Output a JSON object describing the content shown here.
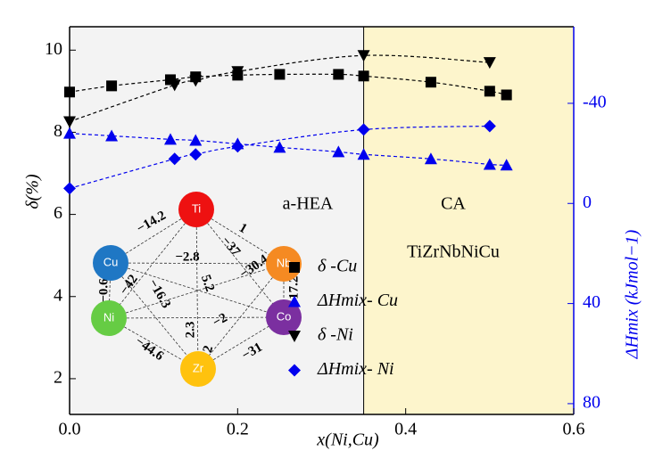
{
  "chart_data": {
    "type": "scatter",
    "x_label": "x(Ni,Cu)",
    "y_label": "δ(%)",
    "y2_label": "ΔHmix (kJmol−1)",
    "xlim": [
      0,
      0.6
    ],
    "xticks": [
      {
        "value": 0,
        "label": "0.0"
      },
      0.2,
      0.4,
      0.6
    ],
    "ylim": [
      1.13,
      10.57
    ],
    "yticks": [
      2,
      4,
      6,
      8,
      10
    ],
    "y2lim": [
      84.3,
      -70.6
    ],
    "y2ticks": [
      -40,
      0,
      40,
      80
    ],
    "regions": [
      {
        "xlim": [
          0,
          0.35
        ],
        "label": "a-HEA",
        "color": "#f3f3f3"
      },
      {
        "xlim": [
          0.35,
          0.6
        ],
        "label": "CA",
        "color": "#fdf5cc"
      }
    ],
    "legend_title": "TiZrNbNiCu",
    "series": [
      {
        "name": "δ -Cu",
        "color": "#000000",
        "marker": "square",
        "x": [
          0,
          0.05,
          0.12,
          0.15,
          0.2,
          0.25,
          0.32,
          0.35,
          0.43,
          0.5,
          0.52
        ],
        "values": [
          8.98,
          9.13,
          9.28,
          9.35,
          9.39,
          9.41,
          9.41,
          9.37,
          9.22,
          9.0,
          8.91
        ]
      },
      {
        "name": "ΔHmix- Cu",
        "color": "#0000ee",
        "marker": "triangle-up",
        "axis": "y2",
        "x": [
          0,
          0.05,
          0.12,
          0.15,
          0.2,
          0.25,
          0.32,
          0.35,
          0.43,
          0.5,
          0.52
        ],
        "values": [
          -28,
          -27,
          -25.6,
          -25.2,
          -23.8,
          -22.4,
          -20.6,
          -19.6,
          -17.8,
          -15.6,
          -15.3
        ]
      },
      {
        "name": "δ -Ni",
        "color": "#000000",
        "marker": "triangle-down",
        "x": [
          0,
          0.125,
          0.15,
          0.2,
          0.35,
          0.5
        ],
        "values": [
          8.26,
          9.15,
          9.26,
          9.48,
          9.87,
          9.7
        ]
      },
      {
        "name": "ΔHmix- Ni",
        "color": "#0000ee",
        "marker": "diamond",
        "axis": "y2",
        "x": [
          0,
          0.125,
          0.15,
          0.2,
          0.35,
          0.5
        ],
        "values": [
          -6,
          -17.8,
          -19.6,
          -22.8,
          -29.5,
          -30.9
        ]
      }
    ],
    "inset": {
      "nodes": [
        {
          "label": "Ti",
          "color": "#ee1111"
        },
        {
          "label": "Cu",
          "color": "#1f77c4"
        },
        {
          "label": "Nb",
          "color": "#f58a22"
        },
        {
          "label": "Ni",
          "color": "#66cc44"
        },
        {
          "label": "Co",
          "color": "#7b2fa0"
        },
        {
          "label": "Zr",
          "color": "#ffc20e"
        }
      ],
      "edges": [
        {
          "from": 0,
          "to": 1,
          "label": "−14.2"
        },
        {
          "from": 0,
          "to": 2,
          "label": "1"
        },
        {
          "from": 0,
          "to": 4,
          "label": "−37"
        },
        {
          "from": 1,
          "to": 2,
          "label": "−2.8"
        },
        {
          "from": 3,
          "to": 2,
          "label": "−30.4"
        },
        {
          "from": 1,
          "to": 4,
          "label": "5.2"
        },
        {
          "from": 0,
          "to": 3,
          "label": "−42"
        },
        {
          "from": 1,
          "to": 5,
          "label": "−16.3"
        },
        {
          "from": 1,
          "to": 3,
          "label": "−0.6"
        },
        {
          "from": 2,
          "to": 4,
          "label": "−17.2"
        },
        {
          "from": 0,
          "to": 5,
          "label": "2.3"
        },
        {
          "from": 3,
          "to": 4,
          "label": "−2"
        },
        {
          "from": 2,
          "to": 5,
          "label": "2"
        },
        {
          "from": 3,
          "to": 5,
          "label": "−44.6"
        },
        {
          "from": 5,
          "to": 4,
          "label": "−31"
        }
      ]
    }
  }
}
